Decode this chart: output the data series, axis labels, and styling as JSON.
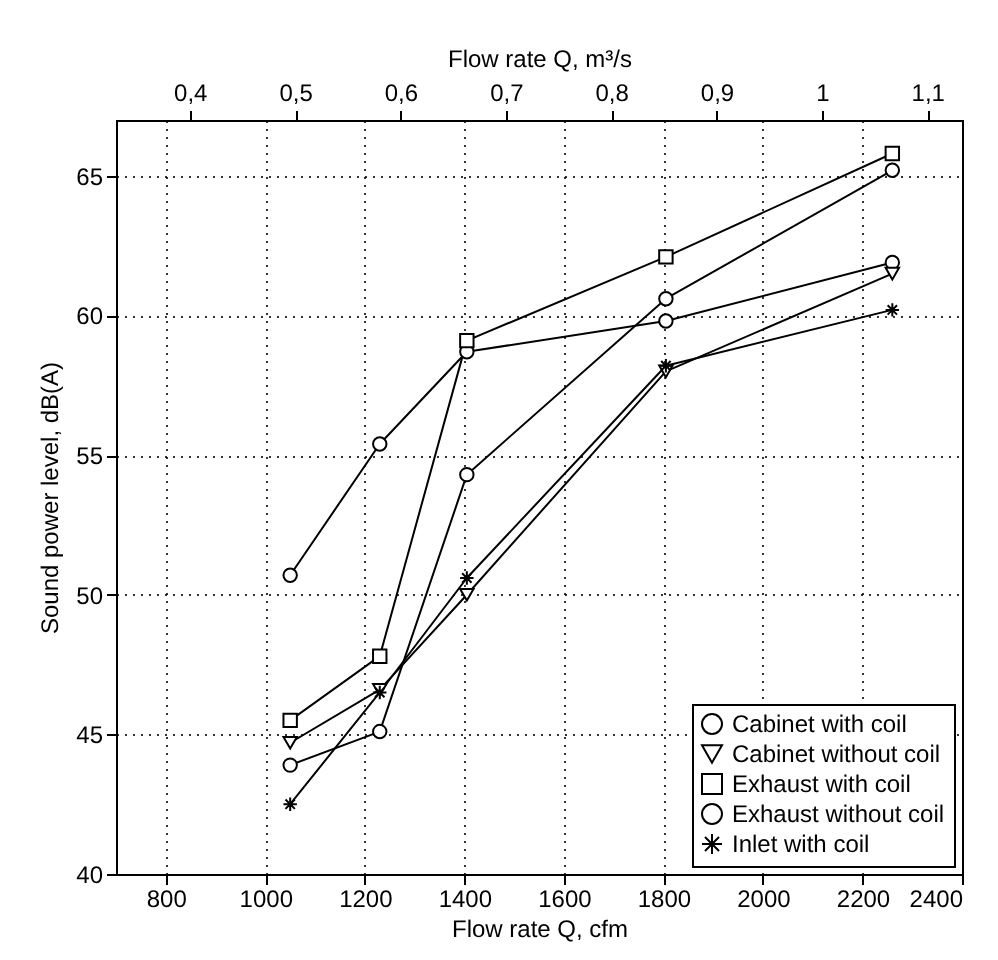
{
  "chart_data": {
    "type": "line",
    "xlabel": "Flow rate Q, cfm",
    "x2label": "Flow rate Q, m³/s",
    "ylabel": "Sound power level, dB(A)",
    "x": [
      1050,
      1230,
      1405,
      1805,
      2260
    ],
    "series": [
      {
        "name": "Cabinet with coil",
        "color": "#000000",
        "marker": "circle",
        "values": [
          50.7,
          55.4,
          58.7,
          59.8,
          61.9
        ]
      },
      {
        "name": "Cabinet without coil",
        "color": "#000000",
        "marker": "triangle",
        "values": [
          44.7,
          46.6,
          50.0,
          58.0,
          61.5
        ]
      },
      {
        "name": "Exhaust with coil",
        "color": "#000000",
        "marker": "square",
        "values": [
          45.5,
          47.8,
          59.1,
          62.1,
          65.8
        ]
      },
      {
        "name": "Exhaust without coil",
        "color": "#000000",
        "marker": "circle",
        "values": [
          43.9,
          45.1,
          54.3,
          60.6,
          65.2
        ]
      },
      {
        "name": "Inlet with coil",
        "color": "#000000",
        "marker": "cross",
        "values": [
          42.5,
          46.5,
          50.6,
          58.2,
          60.2
        ]
      }
    ],
    "xlim": [
      700,
      2400
    ],
    "xticks": [
      800,
      1000,
      1200,
      1400,
      1600,
      1800,
      2000,
      2200,
      2400
    ],
    "x2lim": [
      0.33,
      1.133
    ],
    "x2ticks": [
      {
        "value": 0.4,
        "label": "0,4"
      },
      {
        "value": 0.5,
        "label": "0,5"
      },
      {
        "value": 0.6,
        "label": "0,6"
      },
      {
        "value": 0.7,
        "label": "0,7"
      },
      {
        "value": 0.8,
        "label": "0,8"
      },
      {
        "value": 0.9,
        "label": "0,9"
      },
      1,
      {
        "value": 1.1,
        "label": "1,1"
      }
    ],
    "ylim": [
      40,
      67
    ],
    "yticks": [
      40,
      45,
      50,
      55,
      60,
      65
    ],
    "grid": true,
    "legend": "bottom right",
    "line_style": "solid"
  }
}
